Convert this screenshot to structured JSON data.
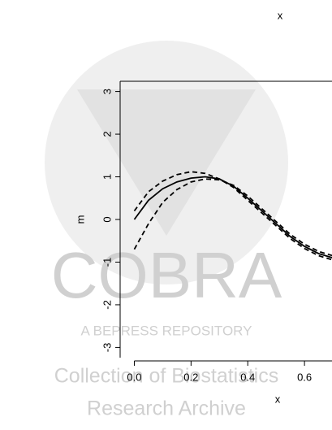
{
  "chart_data": {
    "type": "line",
    "xlabel": "x",
    "ylabel": "m",
    "annotations": [
      "x",
      "COBRA",
      "A BEPRESS REPOSITORY",
      "Collection of Biostatistics",
      "Research Archive"
    ],
    "x": [
      0,
      0.05,
      0.1,
      0.15,
      0.2,
      0.25,
      0.3,
      0.35,
      0.4,
      0.45,
      0.5,
      0.55,
      0.6,
      0.65,
      0.7
    ],
    "series": [
      {
        "color": "#000000",
        "linestyle": "solid",
        "values": [
          0.0,
          0.45,
          0.72,
          0.88,
          0.97,
          1.0,
          0.95,
          0.78,
          0.5,
          0.2,
          -0.1,
          -0.4,
          -0.63,
          -0.8,
          -0.9
        ]
      },
      {
        "color": "#000000",
        "linestyle": "dashed",
        "values": [
          0.2,
          0.65,
          0.9,
          1.05,
          1.12,
          1.08,
          0.95,
          0.75,
          0.45,
          0.15,
          -0.15,
          -0.45,
          -0.68,
          -0.85,
          -0.95
        ]
      },
      {
        "color": "#000000",
        "linestyle": "dashed",
        "values": [
          -0.7,
          -0.1,
          0.4,
          0.7,
          0.88,
          0.95,
          0.93,
          0.8,
          0.55,
          0.25,
          -0.05,
          -0.35,
          -0.58,
          -0.75,
          -0.85
        ]
      }
    ],
    "xlim": [
      -0.05,
      0.697
    ],
    "ylim": [
      -3.24,
      3.24
    ],
    "xticks": [
      {
        "value": 0,
        "label": "0.0"
      },
      0.2,
      0.4,
      0.6
    ],
    "yticks": [
      -3,
      -2,
      -1,
      0,
      1,
      2,
      3
    ]
  }
}
